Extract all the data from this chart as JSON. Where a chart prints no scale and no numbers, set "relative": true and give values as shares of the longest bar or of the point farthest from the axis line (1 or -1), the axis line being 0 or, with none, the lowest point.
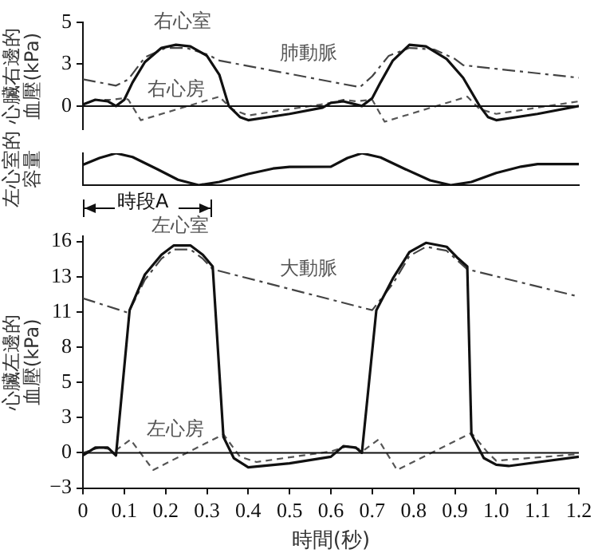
{
  "chart_data": [
    {
      "type": "line",
      "ylabel": "心臟右邊的血壓(kPa)",
      "xlim": [
        0,
        1.2
      ],
      "ylim": [
        -1.5,
        5.33
      ],
      "yticks": [
        0,
        {
          "value": 2.67,
          "label": "3"
        },
        {
          "value": 5.33,
          "label": "5"
        }
      ],
      "tick_labels": "y",
      "grid": false,
      "legend": false,
      "marker": "none",
      "ref_lines": [
        {
          "axis": "y",
          "value": 0,
          "color": "#111111"
        }
      ],
      "series": [
        {
          "name": "右心室",
          "color": "#111111",
          "line_style": "solid",
          "x": [
            0,
            0.03,
            0.06,
            0.08,
            0.1,
            0.12,
            0.15,
            0.19,
            0.225,
            0.26,
            0.3,
            0.33,
            0.353,
            0.38,
            0.4,
            0.5,
            0.58,
            0.6,
            0.63,
            0.66,
            0.675,
            0.7,
            0.72,
            0.75,
            0.79,
            0.83,
            0.88,
            0.92,
            0.96,
            0.98,
            1.0,
            1.1,
            1.2
          ],
          "values": [
            0.1,
            0.4,
            0.3,
            0.0,
            0.4,
            1.5,
            2.8,
            3.7,
            3.9,
            3.8,
            3.2,
            2.0,
            0.0,
            -0.7,
            -0.9,
            -0.5,
            -0.1,
            0.2,
            0.3,
            0.1,
            0.0,
            0.5,
            1.5,
            2.9,
            3.9,
            3.8,
            3.0,
            1.8,
            0.0,
            -0.7,
            -0.9,
            -0.5,
            0.0
          ]
        },
        {
          "name": "肺動脈",
          "color": "#444444",
          "line_style": "dashdot",
          "x": [
            0,
            0.08,
            0.11,
            0.15,
            0.2,
            0.25,
            0.3,
            0.33,
            0.67,
            0.7,
            0.74,
            0.79,
            0.85,
            0.9,
            0.92,
            1.2
          ],
          "values": [
            1.7,
            1.3,
            1.7,
            3.1,
            3.7,
            3.7,
            3.3,
            2.9,
            1.2,
            1.9,
            3.2,
            3.7,
            3.6,
            3.0,
            2.6,
            1.8
          ]
        },
        {
          "name": "右心房",
          "color": "#555555",
          "line_style": "dashed",
          "x": [
            0,
            0.03,
            0.07,
            0.1,
            0.11,
            0.14,
            0.33,
            0.36,
            0.4,
            0.5,
            0.6,
            0.63,
            0.66,
            0.7,
            0.73,
            0.93,
            0.96,
            1.0,
            1.2
          ],
          "values": [
            0.1,
            0.4,
            0.4,
            0.5,
            0.4,
            -0.9,
            0.6,
            -0.2,
            -0.6,
            -0.2,
            0.2,
            0.4,
            0.3,
            0.4,
            -1.0,
            0.6,
            -0.2,
            -0.5,
            0.3
          ]
        }
      ]
    },
    {
      "type": "line",
      "ylabel": "左心室的容量",
      "relative": true,
      "xlim": [
        0,
        1.2
      ],
      "tick_labels": false,
      "grid": false,
      "legend": false,
      "marker": "none",
      "annotations": [
        "時段A"
      ],
      "series": [
        {
          "color": "#111111",
          "line_style": "solid",
          "x": [
            0,
            0.04,
            0.08,
            0.12,
            0.18,
            0.23,
            0.28,
            0.33,
            0.4,
            0.46,
            0.5,
            0.6,
            0.64,
            0.675,
            0.72,
            0.78,
            0.84,
            0.89,
            0.94,
            1.0,
            1.06,
            1.1,
            1.2
          ],
          "values": [
            0.64,
            0.85,
            1,
            0.88,
            0.5,
            0.17,
            0,
            0.1,
            0.35,
            0.52,
            0.57,
            0.58,
            0.85,
            1,
            0.87,
            0.5,
            0.15,
            0,
            0.1,
            0.38,
            0.58,
            0.66,
            0.66
          ]
        }
      ]
    },
    {
      "type": "line",
      "ylabel": "心臟左邊的血壓(kPa)",
      "xlabel": "時間(秒)",
      "xlim": [
        0,
        1.2
      ],
      "xticks": [
        0,
        0.1,
        0.2,
        0.3,
        0.4,
        0.5,
        0.6,
        0.7,
        0.8,
        0.9,
        {
          "value": 1,
          "label": "1.0"
        },
        1.1,
        1.2
      ],
      "ylim": [
        -2.67,
        16.4
      ],
      "yticks": [
        {
          "value": -2.67,
          "label": "−3"
        },
        0,
        {
          "value": 2.67,
          "label": "3"
        },
        {
          "value": 5.33,
          "label": "5"
        },
        8,
        {
          "value": 10.67,
          "label": "11"
        },
        {
          "value": 13.33,
          "label": "13"
        },
        16
      ],
      "grid": false,
      "legend": false,
      "marker": "none",
      "ref_lines": [
        {
          "axis": "y",
          "value": 0,
          "color": "#111111"
        }
      ],
      "series": [
        {
          "name": "左心室",
          "color": "#111111",
          "line_style": "solid",
          "x": [
            0,
            0.03,
            0.06,
            0.08,
            0.113,
            0.15,
            0.19,
            0.22,
            0.26,
            0.29,
            0.314,
            0.34,
            0.365,
            0.4,
            0.5,
            0.6,
            0.63,
            0.66,
            0.675,
            0.71,
            0.75,
            0.79,
            0.83,
            0.88,
            0.905,
            0.93,
            0.94,
            0.97,
            1.0,
            1.03,
            1.2
          ],
          "values": [
            -0.2,
            0.4,
            0.4,
            -0.2,
            10.8,
            13.5,
            15.0,
            15.7,
            15.7,
            15.0,
            14.1,
            1.2,
            -0.4,
            -1.1,
            -0.8,
            -0.3,
            0.5,
            0.4,
            0.0,
            10.8,
            13.2,
            15.2,
            15.9,
            15.6,
            14.8,
            14.1,
            1.4,
            -0.4,
            -0.9,
            -1.0,
            -0.3
          ]
        },
        {
          "name": "大動脈",
          "color": "#444444",
          "line_style": "dashdot",
          "x": [
            0,
            0.11,
            0.15,
            0.19,
            0.22,
            0.26,
            0.29,
            0.314,
            0.7,
            0.75,
            0.79,
            0.83,
            0.88,
            0.93,
            1.19
          ],
          "values": [
            11.7,
            10.6,
            13.1,
            14.7,
            15.4,
            15.4,
            14.7,
            13.9,
            10.8,
            12.8,
            14.9,
            15.6,
            15.3,
            13.9,
            11.9
          ]
        },
        {
          "name": "左心房",
          "color": "#555555",
          "line_style": "dashed",
          "x": [
            0,
            0.04,
            0.08,
            0.115,
            0.17,
            0.34,
            0.38,
            0.42,
            0.6,
            0.64,
            0.68,
            0.715,
            0.76,
            0.94,
            0.98,
            1.0,
            1.2
          ],
          "values": [
            0,
            0.4,
            0.2,
            1.0,
            -1.3,
            1.4,
            -0.3,
            -0.7,
            0.1,
            0.5,
            0.2,
            1.0,
            -1.3,
            1.5,
            0.0,
            -0.6,
            -0.1
          ]
        }
      ]
    }
  ]
}
